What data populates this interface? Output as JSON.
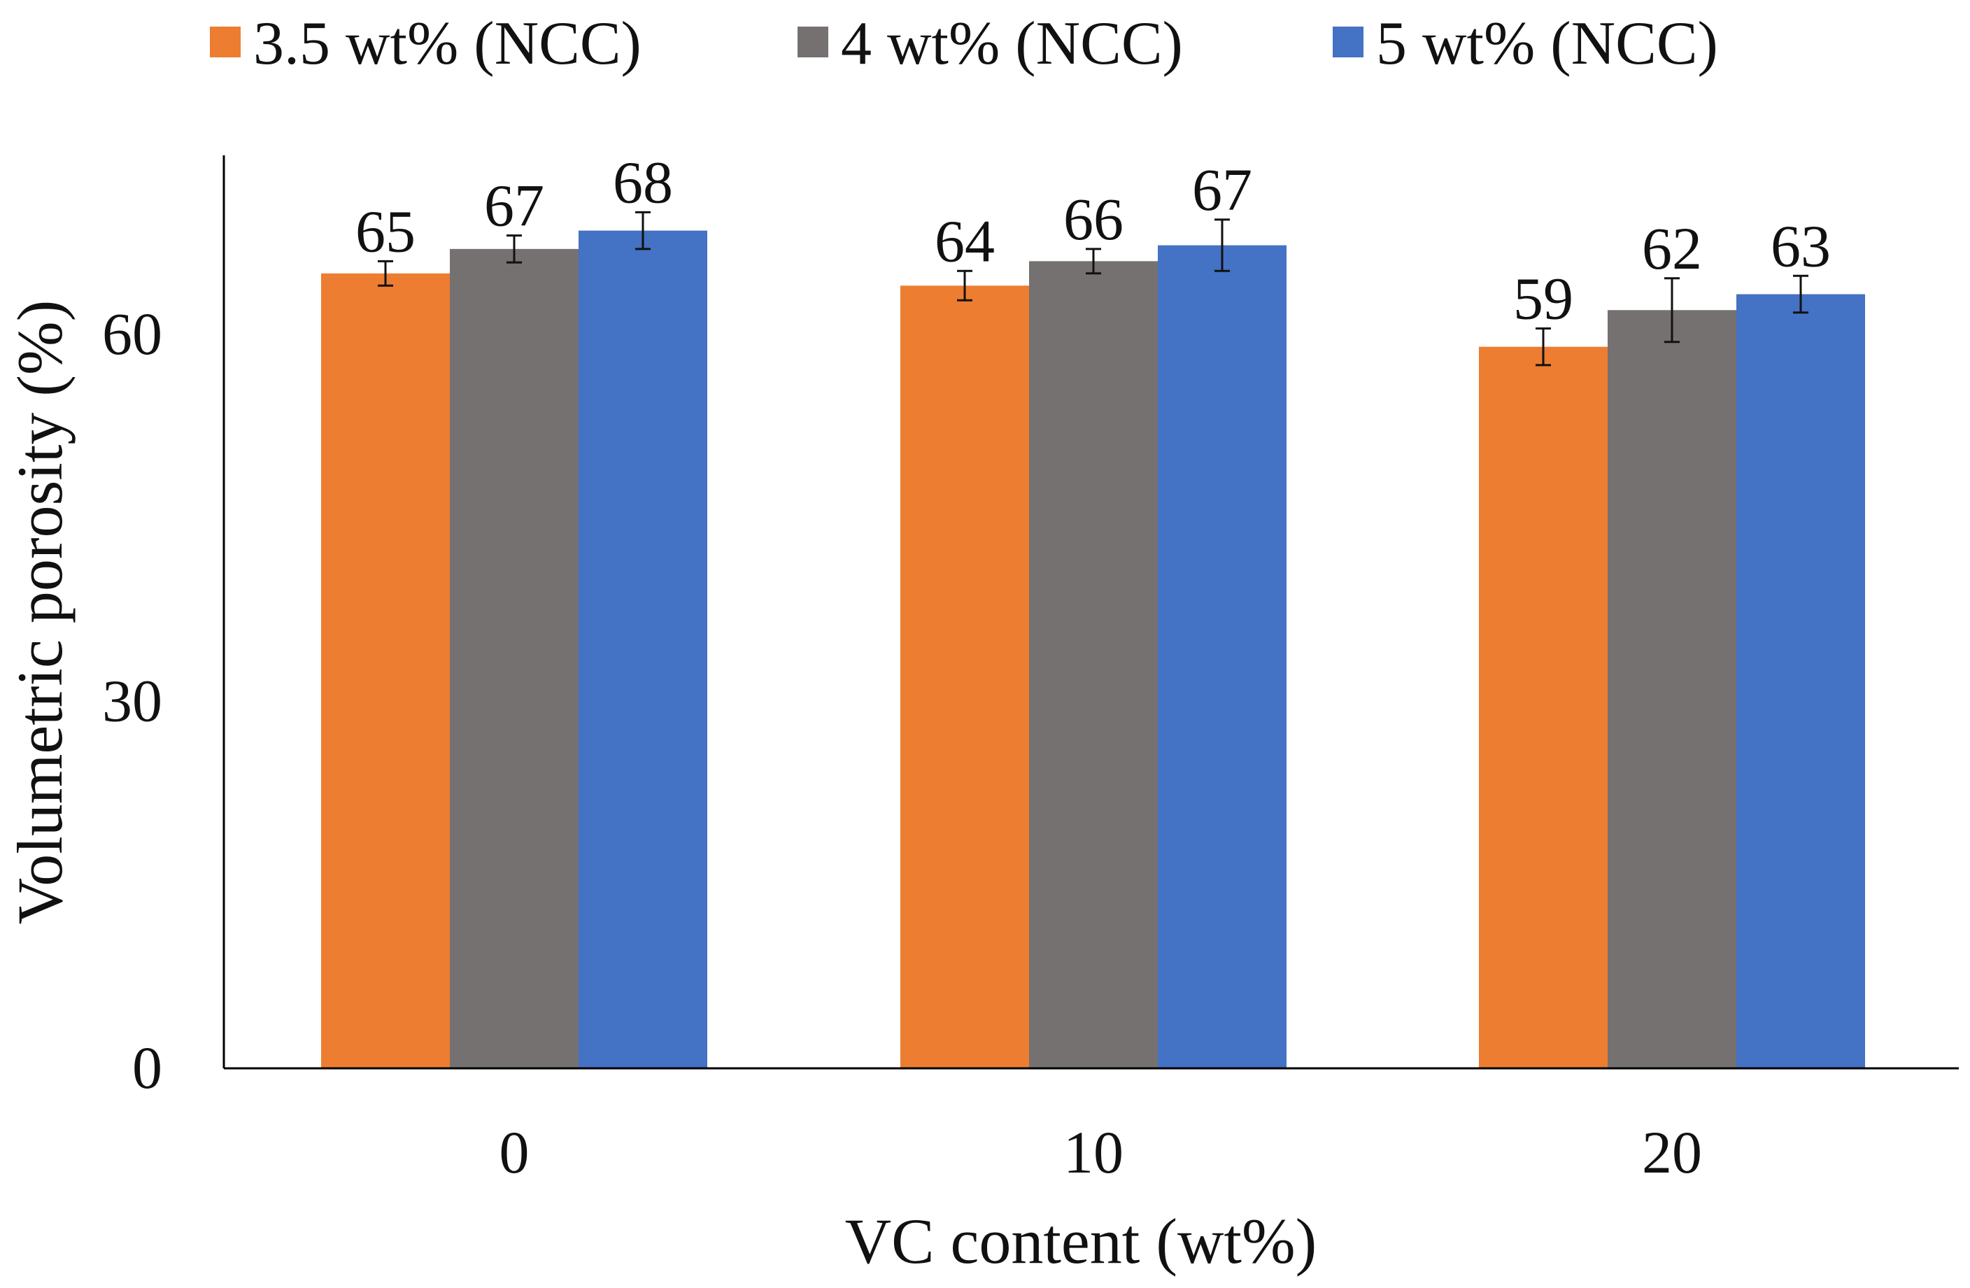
{
  "chart_data": {
    "type": "bar",
    "title": "",
    "xlabel": "VC content (wt%)",
    "ylabel": "Volumetric porosity (%)",
    "categories": [
      "0",
      "10",
      "20"
    ],
    "ylim": [
      0,
      75
    ],
    "yticks": [
      0,
      30,
      60
    ],
    "grid": false,
    "legend_position": "top",
    "series": [
      {
        "name": "3.5 wt% (NCC)",
        "color": "#ED7D31",
        "values": [
          65,
          64,
          59
        ],
        "data_labels": [
          "65",
          "64",
          "59"
        ],
        "errors": [
          1.0,
          1.2,
          1.5
        ]
      },
      {
        "name": "4 wt% (NCC)",
        "color": "#767171",
        "values": [
          67,
          66,
          62
        ],
        "data_labels": [
          "67",
          "66",
          "62"
        ],
        "errors": [
          1.1,
          1.0,
          2.6
        ]
      },
      {
        "name": "5 wt% (NCC)",
        "color": "#4472C4",
        "values": [
          68.5,
          67.3,
          63.3
        ],
        "data_labels": [
          "68",
          "67",
          "63"
        ],
        "errors": [
          1.5,
          2.1,
          1.5
        ]
      }
    ]
  }
}
